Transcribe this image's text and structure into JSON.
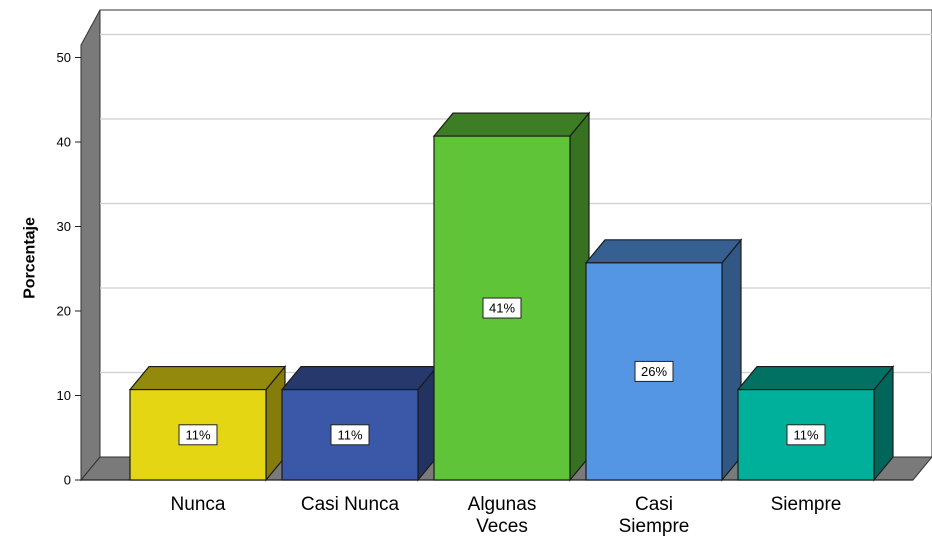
{
  "chart_data": {
    "type": "bar",
    "categories": [
      [
        "Nunca"
      ],
      [
        "Casi Nunca"
      ],
      [
        "Algunas",
        "Veces"
      ],
      [
        "Casi",
        "Siempre"
      ],
      [
        "Siempre"
      ]
    ],
    "values": [
      10.7,
      10.7,
      40.7,
      25.7,
      10.7
    ],
    "data_labels": [
      "11%",
      "11%",
      "41%",
      "26%",
      "11%"
    ],
    "colors": [
      "#e5d614",
      "#3b58a8",
      "#5fc437",
      "#5596e4",
      "#00b09a"
    ],
    "ylabel": "Porcentaje",
    "yticks": [
      "0",
      "10",
      "20",
      "30",
      "40",
      "50"
    ],
    "ylim": [
      0,
      55
    ],
    "grid": true,
    "style": "3d"
  }
}
